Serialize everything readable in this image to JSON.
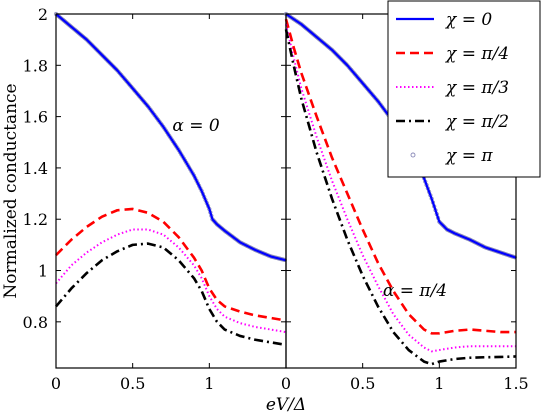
{
  "chart_data": {
    "type": "line",
    "ylabel": "Normalized conductance",
    "xlabel": "eV/Δ",
    "ylim": [
      0.62,
      2.0
    ],
    "y_ticks": [
      "2",
      "1.8",
      "1.6",
      "1.4",
      "1.2",
      "1",
      "0.8"
    ],
    "y_tick_values": [
      2.0,
      1.8,
      1.6,
      1.4,
      1.2,
      1.0,
      0.8
    ],
    "grid": false,
    "legend_position": "top-right",
    "colors": {
      "chi_0": "#0000ff",
      "chi_pi4": "#ff0000",
      "chi_pi3": "#ff00ff",
      "chi_pi2": "#000000",
      "chi_pi": "#8a8ab8"
    },
    "legend": [
      {
        "key": "chi_0",
        "label": "χ = 0",
        "style": "solid"
      },
      {
        "key": "chi_pi4",
        "label": "χ = π/4",
        "style": "dashed"
      },
      {
        "key": "chi_pi3",
        "label": "χ = π/3",
        "style": "dotted"
      },
      {
        "key": "chi_pi2",
        "label": "χ = π/2",
        "style": "dashdot"
      },
      {
        "key": "chi_pi",
        "label": "χ = π",
        "style": "markers"
      }
    ],
    "panels": [
      {
        "annotation": "α = 0",
        "xlim": [
          0,
          1.5
        ],
        "x_ticks": [
          "0",
          "0.5",
          "1"
        ],
        "x_tick_values": [
          0,
          0.5,
          1.0
        ],
        "series": [
          {
            "key": "chi_0",
            "x": [
              0,
              0.1,
              0.2,
              0.3,
              0.4,
              0.5,
              0.6,
              0.7,
              0.8,
              0.9,
              0.95,
              1.0,
              1.02,
              1.05,
              1.1,
              1.2,
              1.3,
              1.4,
              1.5
            ],
            "y": [
              2.0,
              1.95,
              1.9,
              1.84,
              1.78,
              1.71,
              1.64,
              1.56,
              1.47,
              1.37,
              1.31,
              1.24,
              1.2,
              1.18,
              1.155,
              1.11,
              1.08,
              1.055,
              1.04
            ]
          },
          {
            "key": "chi_pi4",
            "x": [
              0,
              0.1,
              0.2,
              0.3,
              0.4,
              0.5,
              0.6,
              0.7,
              0.8,
              0.9,
              0.95,
              1.0,
              1.05,
              1.1,
              1.2,
              1.3,
              1.4,
              1.5
            ],
            "y": [
              1.06,
              1.12,
              1.17,
              1.21,
              1.235,
              1.24,
              1.225,
              1.19,
              1.13,
              1.05,
              1.0,
              0.93,
              0.885,
              0.86,
              0.84,
              0.825,
              0.815,
              0.805
            ]
          },
          {
            "key": "chi_pi3",
            "x": [
              0,
              0.1,
              0.2,
              0.3,
              0.4,
              0.5,
              0.6,
              0.7,
              0.8,
              0.9,
              0.95,
              1.0,
              1.05,
              1.1,
              1.2,
              1.3,
              1.4,
              1.5
            ],
            "y": [
              0.95,
              1.02,
              1.07,
              1.11,
              1.14,
              1.16,
              1.16,
              1.14,
              1.09,
              1.02,
              0.97,
              0.9,
              0.85,
              0.82,
              0.795,
              0.78,
              0.77,
              0.76
            ]
          },
          {
            "key": "chi_pi2",
            "x": [
              0,
              0.1,
              0.2,
              0.3,
              0.4,
              0.5,
              0.6,
              0.7,
              0.8,
              0.9,
              0.95,
              1.0,
              1.05,
              1.1,
              1.2,
              1.3,
              1.4,
              1.5
            ],
            "y": [
              0.86,
              0.93,
              0.99,
              1.04,
              1.075,
              1.1,
              1.105,
              1.09,
              1.04,
              0.97,
              0.92,
              0.85,
              0.8,
              0.77,
              0.745,
              0.73,
              0.72,
              0.71
            ]
          },
          {
            "key": "chi_pi",
            "x": [
              0,
              0.1,
              0.2,
              0.3,
              0.4,
              0.5,
              0.6,
              0.7,
              0.8,
              0.9,
              0.95,
              1.0,
              1.02,
              1.05,
              1.1,
              1.2,
              1.3,
              1.4,
              1.5
            ],
            "y": [
              2.0,
              1.95,
              1.9,
              1.84,
              1.78,
              1.71,
              1.64,
              1.56,
              1.47,
              1.37,
              1.31,
              1.24,
              1.2,
              1.18,
              1.155,
              1.11,
              1.08,
              1.055,
              1.04
            ]
          }
        ]
      },
      {
        "annotation": "α = π/4",
        "xlim": [
          0,
          1.5
        ],
        "x_ticks": [
          "0",
          "0.5",
          "1",
          "1.5"
        ],
        "x_tick_values": [
          0,
          0.5,
          1.0,
          1.5
        ],
        "series": [
          {
            "key": "chi_0",
            "x": [
              0,
              0.1,
              0.2,
              0.3,
              0.4,
              0.5,
              0.6,
              0.7,
              0.8,
              0.9,
              0.95,
              1.0,
              1.05,
              1.1,
              1.2,
              1.3,
              1.4,
              1.5
            ],
            "y": [
              2.0,
              1.96,
              1.91,
              1.86,
              1.8,
              1.73,
              1.66,
              1.58,
              1.48,
              1.36,
              1.28,
              1.19,
              1.16,
              1.145,
              1.12,
              1.09,
              1.07,
              1.05
            ]
          },
          {
            "key": "chi_pi4",
            "x": [
              0,
              0.05,
              0.1,
              0.2,
              0.3,
              0.4,
              0.5,
              0.6,
              0.7,
              0.8,
              0.9,
              0.95,
              1.0,
              1.1,
              1.2,
              1.3,
              1.4,
              1.5
            ],
            "y": [
              1.98,
              1.87,
              1.77,
              1.6,
              1.44,
              1.3,
              1.16,
              1.03,
              0.92,
              0.83,
              0.77,
              0.755,
              0.755,
              0.765,
              0.77,
              0.765,
              0.76,
              0.76
            ]
          },
          {
            "key": "chi_pi3",
            "x": [
              0,
              0.05,
              0.1,
              0.2,
              0.3,
              0.4,
              0.5,
              0.6,
              0.7,
              0.8,
              0.9,
              0.95,
              1.0,
              1.1,
              1.2,
              1.3,
              1.4,
              1.5
            ],
            "y": [
              1.96,
              1.83,
              1.71,
              1.52,
              1.35,
              1.2,
              1.06,
              0.94,
              0.83,
              0.75,
              0.7,
              0.685,
              0.69,
              0.7,
              0.705,
              0.705,
              0.705,
              0.705
            ]
          },
          {
            "key": "chi_pi2",
            "x": [
              0,
              0.05,
              0.1,
              0.2,
              0.3,
              0.4,
              0.5,
              0.6,
              0.7,
              0.8,
              0.9,
              0.95,
              1.0,
              1.1,
              1.2,
              1.3,
              1.4,
              1.5
            ],
            "y": [
              1.94,
              1.8,
              1.67,
              1.46,
              1.28,
              1.12,
              0.98,
              0.86,
              0.76,
              0.69,
              0.645,
              0.635,
              0.645,
              0.655,
              0.66,
              0.662,
              0.663,
              0.665
            ]
          },
          {
            "key": "chi_pi",
            "x": [
              0,
              0.1,
              0.2,
              0.3,
              0.4,
              0.5,
              0.6,
              0.7,
              0.8,
              0.9,
              0.95,
              1.0,
              1.05,
              1.1,
              1.2,
              1.3,
              1.4,
              1.5
            ],
            "y": [
              2.0,
              1.96,
              1.91,
              1.86,
              1.8,
              1.73,
              1.66,
              1.58,
              1.48,
              1.36,
              1.28,
              1.19,
              1.16,
              1.145,
              1.12,
              1.09,
              1.07,
              1.05
            ]
          }
        ]
      }
    ]
  }
}
